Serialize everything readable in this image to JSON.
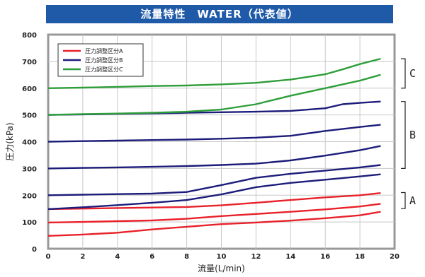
{
  "chart_data": {
    "type": "line",
    "title": "流量特性　WATER（代表値）",
    "xlabel": "流量(L/min)",
    "ylabel": "圧力(kPa)",
    "xlim": [
      0,
      20
    ],
    "ylim": [
      0,
      800
    ],
    "xticks": [
      0,
      2,
      4,
      6,
      8,
      10,
      12,
      14,
      16,
      18,
      20
    ],
    "yticks": [
      0,
      100,
      200,
      300,
      400,
      500,
      600,
      700,
      800
    ],
    "grid": true,
    "legend_position": "top-left",
    "legend": [
      {
        "name": "圧力調整区分A",
        "color": "#e8212a"
      },
      {
        "name": "圧力調整区分B",
        "color": "#1c1c7a"
      },
      {
        "name": "圧力調整区分C",
        "color": "#2e9e3a"
      }
    ],
    "groups": [
      {
        "label": "C",
        "range": [
          600,
          710
        ]
      },
      {
        "label": "B",
        "range": [
          300,
          550
        ]
      },
      {
        "label": "A",
        "range": [
          150,
          210
        ]
      }
    ],
    "series": [
      {
        "name": "圧力調整区分A",
        "color": "#e8212a",
        "points": [
          [
            0,
            48
          ],
          [
            2,
            53
          ],
          [
            4,
            60
          ],
          [
            6,
            72
          ],
          [
            8,
            82
          ],
          [
            10,
            92
          ],
          [
            12,
            98
          ],
          [
            14,
            105
          ],
          [
            16,
            114
          ],
          [
            18,
            125
          ],
          [
            19.2,
            138
          ]
        ]
      },
      {
        "name": "圧力調整区分A",
        "color": "#e8212a",
        "points": [
          [
            0,
            98
          ],
          [
            2,
            100
          ],
          [
            4,
            103
          ],
          [
            6,
            106
          ],
          [
            8,
            112
          ],
          [
            10,
            122
          ],
          [
            12,
            130
          ],
          [
            14,
            138
          ],
          [
            16,
            147
          ],
          [
            18,
            158
          ],
          [
            19.2,
            168
          ]
        ]
      },
      {
        "name": "圧力調整区分A",
        "color": "#e8212a",
        "points": [
          [
            0,
            148
          ],
          [
            2,
            150
          ],
          [
            4,
            152
          ],
          [
            6,
            154
          ],
          [
            8,
            156
          ],
          [
            10,
            162
          ],
          [
            12,
            172
          ],
          [
            14,
            182
          ],
          [
            16,
            192
          ],
          [
            18,
            200
          ],
          [
            19.2,
            208
          ]
        ]
      },
      {
        "name": "圧力調整区分B",
        "color": "#1c1c7a",
        "points": [
          [
            0,
            148
          ],
          [
            2,
            155
          ],
          [
            4,
            163
          ],
          [
            6,
            172
          ],
          [
            8,
            182
          ],
          [
            10,
            203
          ],
          [
            12,
            230
          ],
          [
            14,
            246
          ],
          [
            16,
            258
          ],
          [
            18,
            270
          ],
          [
            19.2,
            278
          ]
        ]
      },
      {
        "name": "圧力調整区分B",
        "color": "#1c1c7a",
        "points": [
          [
            0,
            200
          ],
          [
            2,
            202
          ],
          [
            4,
            204
          ],
          [
            6,
            206
          ],
          [
            8,
            212
          ],
          [
            10,
            238
          ],
          [
            12,
            265
          ],
          [
            14,
            280
          ],
          [
            16,
            292
          ],
          [
            18,
            304
          ],
          [
            19.2,
            313
          ]
        ]
      },
      {
        "name": "圧力調整区分B",
        "color": "#1c1c7a",
        "points": [
          [
            0,
            300
          ],
          [
            2,
            302
          ],
          [
            4,
            304
          ],
          [
            6,
            306
          ],
          [
            8,
            309
          ],
          [
            10,
            313
          ],
          [
            12,
            318
          ],
          [
            14,
            330
          ],
          [
            16,
            348
          ],
          [
            18,
            368
          ],
          [
            19.2,
            384
          ]
        ]
      },
      {
        "name": "圧力調整区分B",
        "color": "#1c1c7a",
        "points": [
          [
            0,
            400
          ],
          [
            2,
            402
          ],
          [
            4,
            404
          ],
          [
            6,
            406
          ],
          [
            8,
            408
          ],
          [
            10,
            411
          ],
          [
            12,
            415
          ],
          [
            14,
            422
          ],
          [
            16,
            440
          ],
          [
            18,
            455
          ],
          [
            19.2,
            463
          ]
        ]
      },
      {
        "name": "圧力調整区分B",
        "color": "#1c1c7a",
        "points": [
          [
            0,
            500
          ],
          [
            2,
            502
          ],
          [
            4,
            504
          ],
          [
            6,
            506
          ],
          [
            8,
            508
          ],
          [
            10,
            510
          ],
          [
            12,
            512
          ],
          [
            14,
            515
          ],
          [
            16,
            525
          ],
          [
            17,
            540
          ],
          [
            18,
            545
          ],
          [
            19.2,
            550
          ]
        ]
      },
      {
        "name": "圧力調整区分C",
        "color": "#2e9e3a",
        "points": [
          [
            0,
            500
          ],
          [
            2,
            503
          ],
          [
            4,
            505
          ],
          [
            6,
            508
          ],
          [
            8,
            512
          ],
          [
            10,
            520
          ],
          [
            12,
            540
          ],
          [
            14,
            572
          ],
          [
            16,
            600
          ],
          [
            18,
            628
          ],
          [
            19.2,
            650
          ]
        ]
      },
      {
        "name": "圧力調整区分C",
        "color": "#2e9e3a",
        "points": [
          [
            0,
            600
          ],
          [
            2,
            602
          ],
          [
            4,
            605
          ],
          [
            6,
            608
          ],
          [
            8,
            610
          ],
          [
            10,
            614
          ],
          [
            12,
            620
          ],
          [
            14,
            632
          ],
          [
            16,
            652
          ],
          [
            17,
            670
          ],
          [
            18,
            690
          ],
          [
            19.2,
            710
          ]
        ]
      }
    ]
  }
}
